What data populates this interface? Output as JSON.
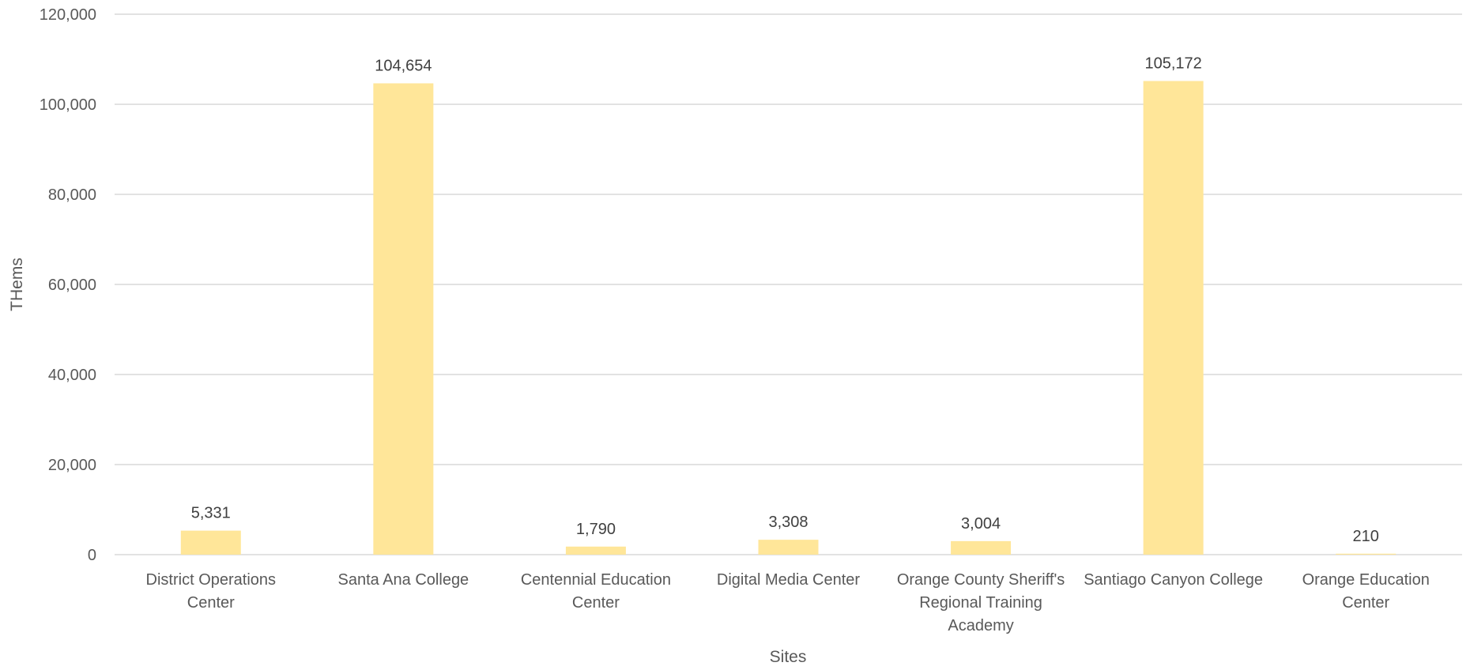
{
  "chart_data": {
    "type": "bar",
    "categories": [
      [
        "District Operations",
        "Center"
      ],
      [
        "Santa Ana College"
      ],
      [
        "Centennial Education",
        "Center"
      ],
      [
        "Digital Media Center"
      ],
      [
        "Orange County Sheriff's",
        "Regional Training",
        "Academy"
      ],
      [
        "Santiago Canyon College"
      ],
      [
        "Orange Education",
        "Center"
      ]
    ],
    "values": [
      5331,
      104654,
      1790,
      3308,
      3004,
      105172,
      210
    ],
    "data_labels": [
      "5,331",
      "104,654",
      "1,790",
      "3,308",
      "3,004",
      "105,172",
      "210"
    ],
    "xlabel": "Sites",
    "ylabel": "THems",
    "ylim": [
      0,
      120000
    ],
    "yticks": [
      0,
      20000,
      40000,
      60000,
      80000,
      100000,
      120000
    ],
    "ytick_labels": [
      "0",
      "20,000",
      "40,000",
      "60,000",
      "80,000",
      "100,000",
      "120,000"
    ],
    "grid": true,
    "legend": "none",
    "bar_color": "#FFE699",
    "grid_color": "#D9D9D9"
  }
}
